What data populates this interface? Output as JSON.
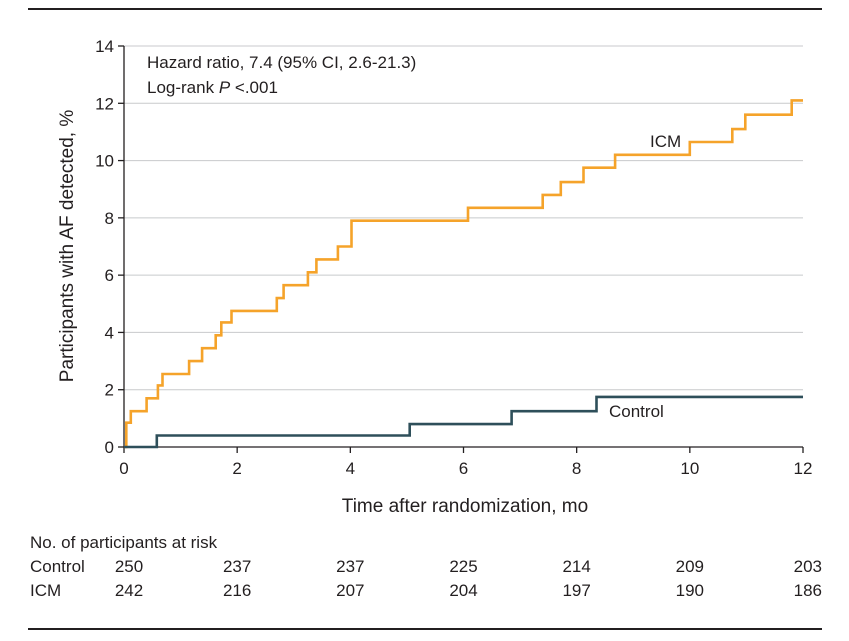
{
  "chart_data": {
    "type": "line",
    "xlabel": "Time after randomization, mo",
    "ylabel": "Participants with AF detected, %",
    "xlim": [
      0,
      12
    ],
    "ylim": [
      0,
      14
    ],
    "xticks": [
      0,
      2,
      4,
      6,
      8,
      10,
      12
    ],
    "yticks": [
      0,
      2,
      4,
      6,
      8,
      10,
      12,
      14
    ],
    "grid": true,
    "annotations": {
      "hazard": "Hazard ratio, 7.4 (95% CI, 2.6-21.3)",
      "logrank_prefix": "Log-rank ",
      "logrank_p": "P",
      "logrank_suffix": " <.001"
    },
    "series": [
      {
        "name": "ICM",
        "color": "#f5a32a",
        "x": [
          0,
          0.04,
          0.04,
          0.12,
          0.12,
          0.4,
          0.4,
          0.6,
          0.6,
          0.68,
          0.68,
          1.15,
          1.15,
          1.38,
          1.38,
          1.62,
          1.62,
          1.72,
          1.72,
          1.9,
          1.9,
          2.7,
          2.7,
          2.82,
          2.82,
          3.25,
          3.25,
          3.4,
          3.4,
          3.78,
          3.78,
          4.02,
          4.02,
          6.08,
          6.08,
          7.4,
          7.4,
          7.72,
          7.72,
          8.12,
          8.12,
          8.68,
          8.68,
          10.0,
          10.0,
          10.75,
          10.75,
          10.98,
          10.98,
          11.8,
          11.8,
          12.0
        ],
        "y": [
          0,
          0,
          0.85,
          0.85,
          1.25,
          1.25,
          1.7,
          1.7,
          2.15,
          2.15,
          2.55,
          2.55,
          3.0,
          3.0,
          3.45,
          3.45,
          3.9,
          3.9,
          4.35,
          4.35,
          4.75,
          4.75,
          5.2,
          5.2,
          5.65,
          5.65,
          6.1,
          6.1,
          6.55,
          6.55,
          7.0,
          7.0,
          7.9,
          7.9,
          8.35,
          8.35,
          8.8,
          8.8,
          9.25,
          9.25,
          9.75,
          9.75,
          10.2,
          10.2,
          10.65,
          10.65,
          11.1,
          11.1,
          11.6,
          11.6,
          12.1,
          12.1
        ]
      },
      {
        "name": "Control",
        "color": "#2e4f5a",
        "x": [
          0,
          0.58,
          0.58,
          5.05,
          5.05,
          6.85,
          6.85,
          8.35,
          8.35,
          12.0
        ],
        "y": [
          0,
          0,
          0.4,
          0.4,
          0.8,
          0.8,
          1.25,
          1.25,
          1.75,
          1.75
        ]
      }
    ]
  },
  "risk_table": {
    "title": "No. of participants at risk",
    "times": [
      0,
      2,
      4,
      6,
      8,
      10,
      12
    ],
    "rows": [
      {
        "label": "Control",
        "values": [
          "250",
          "237",
          "237",
          "225",
          "214",
          "209",
          "203"
        ]
      },
      {
        "label": "ICM",
        "values": [
          "242",
          "216",
          "207",
          "204",
          "197",
          "190",
          "186"
        ]
      }
    ]
  }
}
